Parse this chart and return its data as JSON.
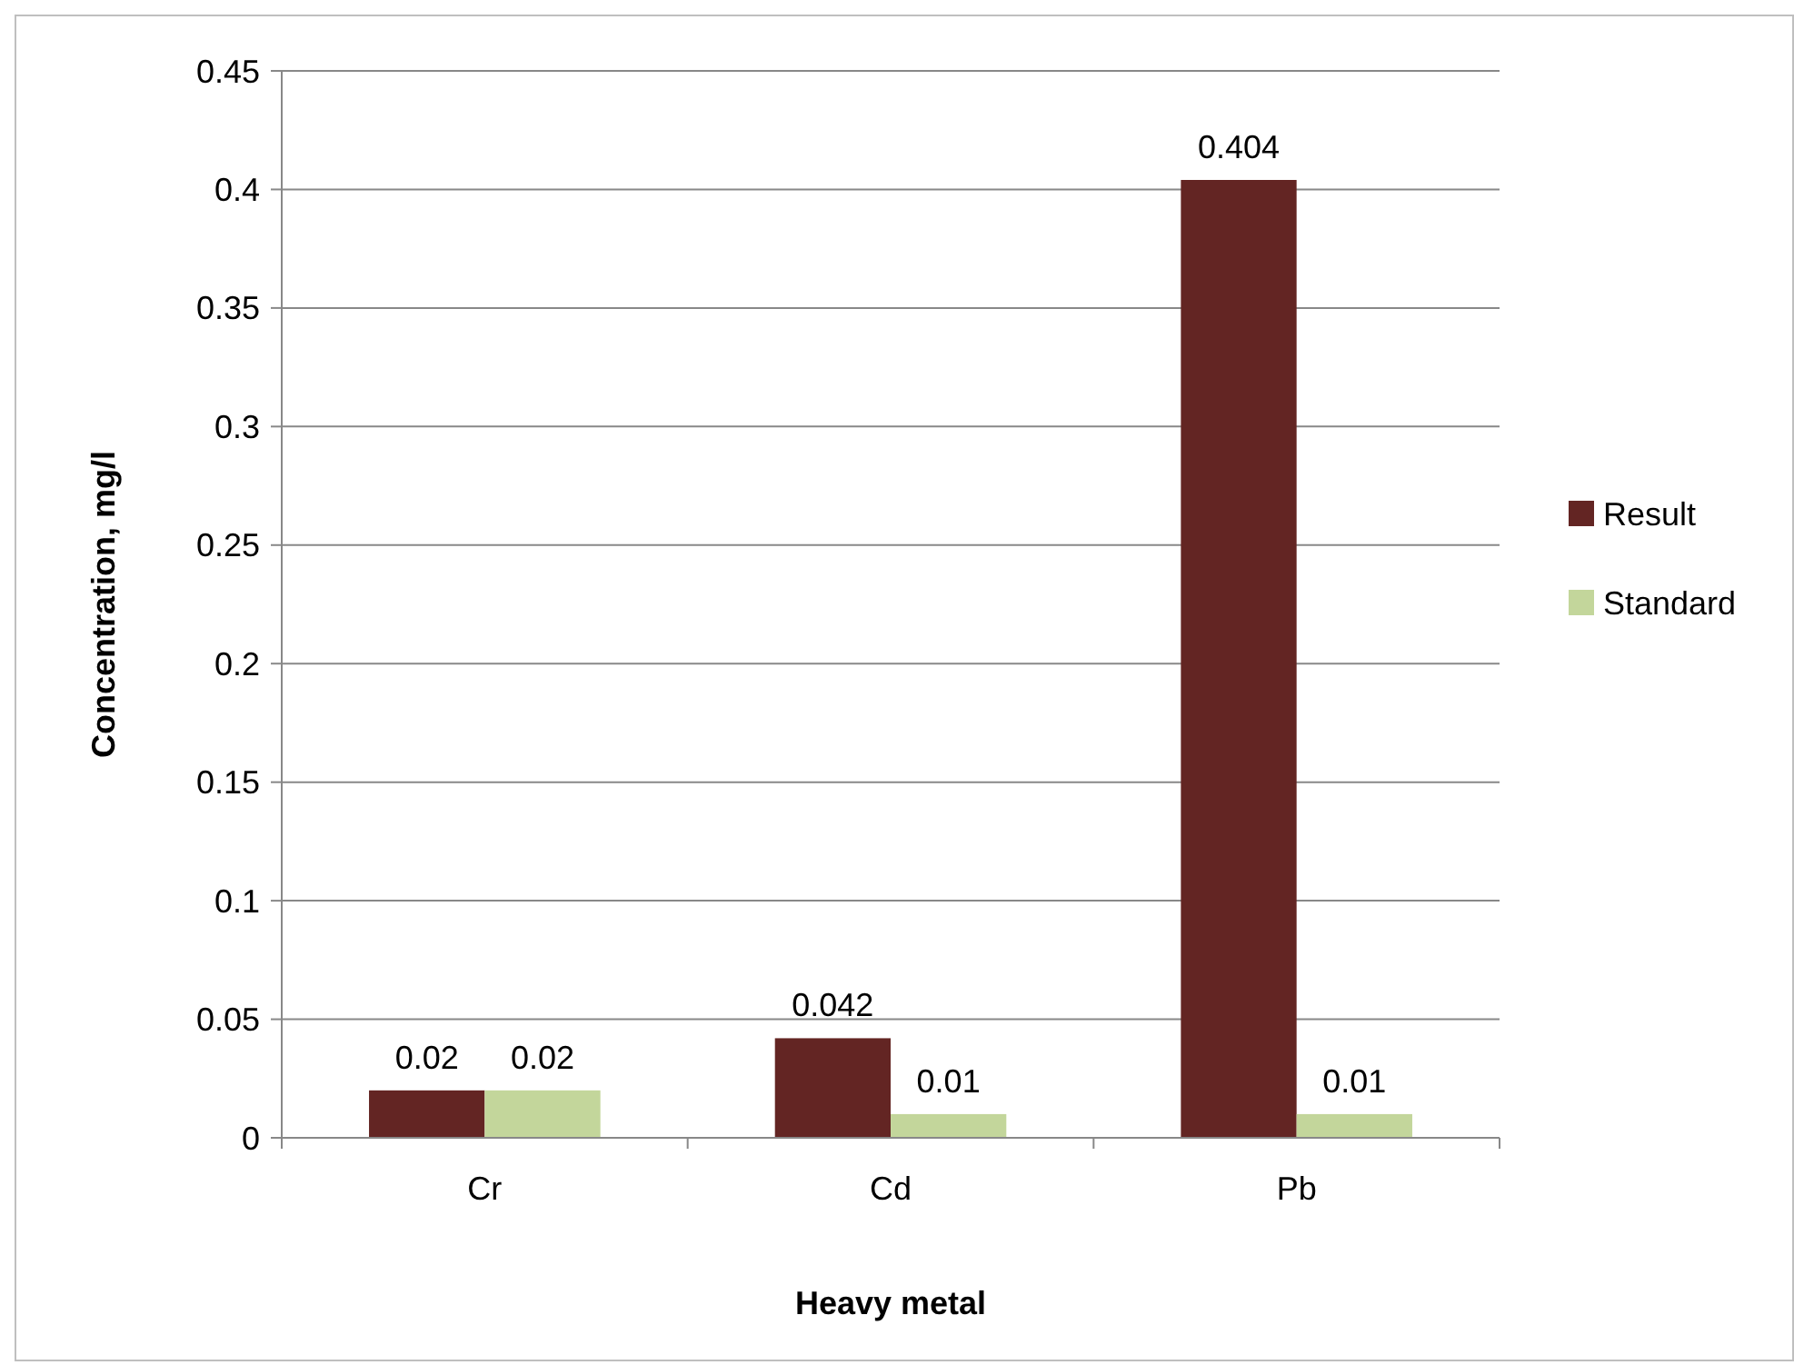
{
  "chart_data": {
    "type": "bar",
    "xlabel": "Heavy metal",
    "ylabel": "Concentration, mg/l",
    "categories": [
      "Cr",
      "Cd",
      "Pb"
    ],
    "series": [
      {
        "name": "Result",
        "color": "#632523",
        "values": [
          0.02,
          0.042,
          0.404
        ]
      },
      {
        "name": "Standard",
        "color": "#c3d69b",
        "values": [
          0.02,
          0.01,
          0.01
        ]
      }
    ],
    "ylim": [
      0,
      0.45
    ],
    "yticks": [
      0,
      0.05,
      0.1,
      0.15,
      0.2,
      0.25,
      0.3,
      0.35,
      0.4,
      0.45
    ],
    "grid": "y",
    "legend": "right",
    "data_labels": true
  }
}
